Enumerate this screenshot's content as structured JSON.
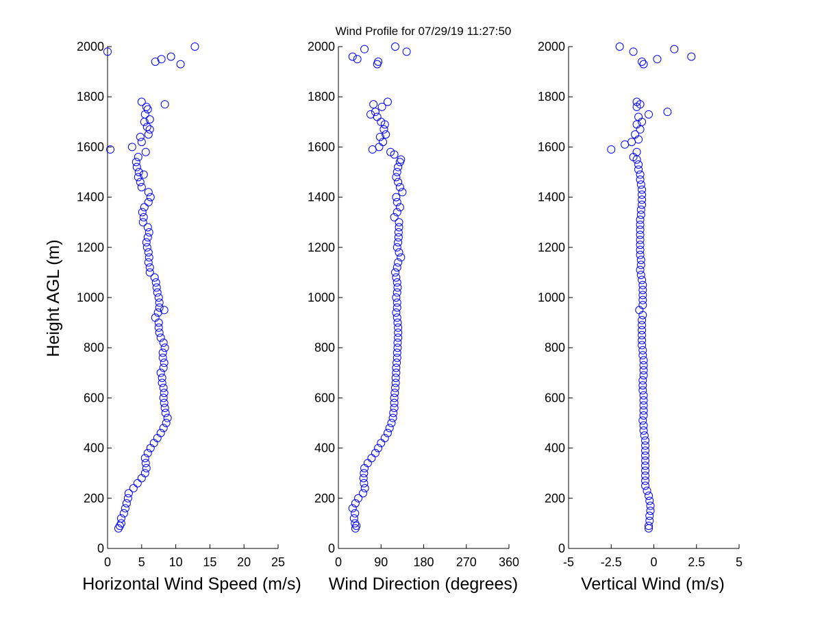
{
  "figure": {
    "title": "Wind Profile for  07/29/19 11:27:50",
    "ylabel": "Height AGL (m)"
  },
  "colors": {
    "marker": "#0000ff",
    "axis": "#000000",
    "background": "#ffffff"
  },
  "chart_data": [
    {
      "type": "scatter",
      "name": "horizontal-wind-speed",
      "xlabel": "Horizontal Wind Speed (m/s)",
      "ylabel": "Height AGL (m)",
      "xlim": [
        0,
        25
      ],
      "ylim": [
        0,
        2000
      ],
      "xticks": [
        0,
        5,
        10,
        15,
        20,
        25
      ],
      "xtick_labels": [
        "0",
        "5",
        "10",
        "15",
        "20",
        "25"
      ],
      "yticks": [
        0,
        200,
        400,
        600,
        800,
        1000,
        1200,
        1400,
        1600,
        1800,
        2000
      ],
      "ytick_labels": [
        "0",
        "200",
        "400",
        "600",
        "800",
        "1000",
        "1200",
        "1400",
        "1600",
        "1800",
        "2000"
      ],
      "marker": "open-circle",
      "points": [
        [
          1.6,
          80
        ],
        [
          1.8,
          90
        ],
        [
          2.0,
          100
        ],
        [
          2.0,
          120
        ],
        [
          2.4,
          140
        ],
        [
          2.6,
          160
        ],
        [
          2.8,
          180
        ],
        [
          3.0,
          200
        ],
        [
          3.1,
          220
        ],
        [
          3.8,
          240
        ],
        [
          4.4,
          260
        ],
        [
          5.0,
          280
        ],
        [
          5.5,
          300
        ],
        [
          5.7,
          320
        ],
        [
          5.6,
          340
        ],
        [
          5.5,
          360
        ],
        [
          5.9,
          380
        ],
        [
          6.3,
          400
        ],
        [
          6.8,
          420
        ],
        [
          7.3,
          440
        ],
        [
          7.8,
          460
        ],
        [
          8.2,
          480
        ],
        [
          8.6,
          500
        ],
        [
          8.8,
          520
        ],
        [
          8.5,
          540
        ],
        [
          8.4,
          560
        ],
        [
          8.3,
          580
        ],
        [
          8.2,
          600
        ],
        [
          8.3,
          620
        ],
        [
          8.2,
          640
        ],
        [
          8.0,
          660
        ],
        [
          8.0,
          680
        ],
        [
          7.8,
          700
        ],
        [
          8.2,
          720
        ],
        [
          8.3,
          740
        ],
        [
          8.1,
          760
        ],
        [
          8.1,
          780
        ],
        [
          8.4,
          800
        ],
        [
          8.2,
          820
        ],
        [
          7.8,
          840
        ],
        [
          7.6,
          860
        ],
        [
          7.5,
          880
        ],
        [
          7.5,
          900
        ],
        [
          7.0,
          920
        ],
        [
          7.4,
          940
        ],
        [
          8.3,
          950
        ],
        [
          7.6,
          960
        ],
        [
          7.6,
          980
        ],
        [
          7.5,
          1000
        ],
        [
          7.3,
          1020
        ],
        [
          7.2,
          1040
        ],
        [
          7.1,
          1060
        ],
        [
          6.9,
          1080
        ],
        [
          6.2,
          1100
        ],
        [
          6.2,
          1120
        ],
        [
          6.0,
          1140
        ],
        [
          6.1,
          1160
        ],
        [
          6.0,
          1180
        ],
        [
          5.8,
          1200
        ],
        [
          5.7,
          1220
        ],
        [
          5.9,
          1240
        ],
        [
          6.1,
          1260
        ],
        [
          5.9,
          1280
        ],
        [
          5.2,
          1300
        ],
        [
          5.3,
          1320
        ],
        [
          5.1,
          1340
        ],
        [
          5.4,
          1360
        ],
        [
          6.0,
          1380
        ],
        [
          6.3,
          1400
        ],
        [
          6.0,
          1420
        ],
        [
          5.0,
          1440
        ],
        [
          4.8,
          1460
        ],
        [
          4.5,
          1480
        ],
        [
          5.3,
          1490
        ],
        [
          4.6,
          1500
        ],
        [
          4.3,
          1520
        ],
        [
          4.2,
          1540
        ],
        [
          4.5,
          1560
        ],
        [
          5.6,
          1580
        ],
        [
          0.4,
          1590
        ],
        [
          3.6,
          1600
        ],
        [
          5.0,
          1620
        ],
        [
          4.8,
          1640
        ],
        [
          6.0,
          1650
        ],
        [
          6.2,
          1670
        ],
        [
          5.8,
          1680
        ],
        [
          5.4,
          1700
        ],
        [
          6.2,
          1710
        ],
        [
          5.5,
          1730
        ],
        [
          5.9,
          1750
        ],
        [
          5.7,
          1760
        ],
        [
          8.4,
          1770
        ],
        [
          5.0,
          1780
        ],
        [
          7.0,
          1940
        ],
        [
          7.9,
          1950
        ],
        [
          9.3,
          1960
        ],
        [
          10.7,
          1930
        ],
        [
          0.0,
          1980
        ],
        [
          12.8,
          2000
        ]
      ]
    },
    {
      "type": "scatter",
      "name": "wind-direction",
      "xlabel": "Wind Direction (degrees)",
      "ylabel": "",
      "xlim": [
        0,
        360
      ],
      "ylim": [
        0,
        2000
      ],
      "xticks": [
        0,
        90,
        180,
        270,
        360
      ],
      "xtick_labels": [
        "0",
        "90",
        "180",
        "270",
        "360"
      ],
      "yticks": [
        0,
        200,
        400,
        600,
        800,
        1000,
        1200,
        1400,
        1600,
        1800,
        2000
      ],
      "ytick_labels": [
        "0",
        "200",
        "400",
        "600",
        "800",
        "1000",
        "1200",
        "1400",
        "1600",
        "1800",
        "2000"
      ],
      "marker": "open-circle",
      "points": [
        [
          36,
          80
        ],
        [
          38,
          90
        ],
        [
          35,
          100
        ],
        [
          33,
          120
        ],
        [
          35,
          140
        ],
        [
          30,
          160
        ],
        [
          36,
          180
        ],
        [
          42,
          200
        ],
        [
          52,
          220
        ],
        [
          56,
          240
        ],
        [
          54,
          260
        ],
        [
          53,
          280
        ],
        [
          54,
          300
        ],
        [
          55,
          320
        ],
        [
          62,
          340
        ],
        [
          70,
          360
        ],
        [
          78,
          380
        ],
        [
          84,
          400
        ],
        [
          90,
          420
        ],
        [
          98,
          440
        ],
        [
          104,
          460
        ],
        [
          108,
          480
        ],
        [
          112,
          500
        ],
        [
          115,
          520
        ],
        [
          116,
          540
        ],
        [
          118,
          560
        ],
        [
          118,
          580
        ],
        [
          118,
          600
        ],
        [
          119,
          620
        ],
        [
          120,
          640
        ],
        [
          121,
          660
        ],
        [
          121,
          680
        ],
        [
          122,
          700
        ],
        [
          122,
          720
        ],
        [
          123,
          740
        ],
        [
          124,
          760
        ],
        [
          124,
          780
        ],
        [
          125,
          800
        ],
        [
          125,
          820
        ],
        [
          126,
          840
        ],
        [
          126,
          860
        ],
        [
          126,
          880
        ],
        [
          125,
          900
        ],
        [
          124,
          920
        ],
        [
          122,
          940
        ],
        [
          124,
          960
        ],
        [
          124,
          980
        ],
        [
          122,
          1000
        ],
        [
          124,
          1020
        ],
        [
          125,
          1040
        ],
        [
          124,
          1060
        ],
        [
          122,
          1080
        ],
        [
          120,
          1100
        ],
        [
          124,
          1120
        ],
        [
          126,
          1140
        ],
        [
          132,
          1160
        ],
        [
          128,
          1180
        ],
        [
          124,
          1200
        ],
        [
          126,
          1220
        ],
        [
          127,
          1240
        ],
        [
          127,
          1260
        ],
        [
          128,
          1280
        ],
        [
          128,
          1300
        ],
        [
          118,
          1320
        ],
        [
          124,
          1340
        ],
        [
          130,
          1360
        ],
        [
          124,
          1380
        ],
        [
          122,
          1400
        ],
        [
          135,
          1420
        ],
        [
          130,
          1440
        ],
        [
          126,
          1460
        ],
        [
          122,
          1480
        ],
        [
          124,
          1500
        ],
        [
          126,
          1520
        ],
        [
          130,
          1540
        ],
        [
          132,
          1550
        ],
        [
          118,
          1570
        ],
        [
          110,
          1580
        ],
        [
          72,
          1590
        ],
        [
          86,
          1600
        ],
        [
          94,
          1620
        ],
        [
          88,
          1640
        ],
        [
          100,
          1650
        ],
        [
          96,
          1670
        ],
        [
          98,
          1690
        ],
        [
          90,
          1700
        ],
        [
          82,
          1720
        ],
        [
          68,
          1730
        ],
        [
          78,
          1740
        ],
        [
          92,
          1760
        ],
        [
          74,
          1770
        ],
        [
          104,
          1780
        ],
        [
          30,
          1960
        ],
        [
          40,
          1950
        ],
        [
          82,
          1930
        ],
        [
          84,
          1940
        ],
        [
          55,
          1990
        ],
        [
          120,
          2000
        ],
        [
          144,
          1980
        ]
      ]
    },
    {
      "type": "scatter",
      "name": "vertical-wind",
      "xlabel": "Vertical Wind (m/s)",
      "ylabel": "",
      "xlim": [
        -5,
        5
      ],
      "ylim": [
        0,
        2000
      ],
      "xticks": [
        -5,
        -2.5,
        0,
        2.5,
        5
      ],
      "xtick_labels": [
        "-5",
        "-2.5",
        "0",
        "2.5",
        "5"
      ],
      "yticks": [
        0,
        200,
        400,
        600,
        800,
        1000,
        1200,
        1400,
        1600,
        1800,
        2000
      ],
      "ytick_labels": [
        "0",
        "200",
        "400",
        "600",
        "800",
        "1000",
        "1200",
        "1400",
        "1600",
        "1800",
        "2000"
      ],
      "marker": "open-circle",
      "points": [
        [
          -0.3,
          80
        ],
        [
          -0.3,
          90
        ],
        [
          -0.25,
          110
        ],
        [
          -0.25,
          130
        ],
        [
          -0.2,
          150
        ],
        [
          -0.2,
          170
        ],
        [
          -0.25,
          190
        ],
        [
          -0.3,
          210
        ],
        [
          -0.4,
          230
        ],
        [
          -0.5,
          250
        ],
        [
          -0.5,
          270
        ],
        [
          -0.5,
          290
        ],
        [
          -0.5,
          310
        ],
        [
          -0.5,
          330
        ],
        [
          -0.5,
          350
        ],
        [
          -0.5,
          370
        ],
        [
          -0.5,
          390
        ],
        [
          -0.5,
          410
        ],
        [
          -0.5,
          430
        ],
        [
          -0.55,
          450
        ],
        [
          -0.6,
          470
        ],
        [
          -0.6,
          490
        ],
        [
          -0.65,
          510
        ],
        [
          -0.6,
          530
        ],
        [
          -0.6,
          550
        ],
        [
          -0.6,
          570
        ],
        [
          -0.6,
          590
        ],
        [
          -0.6,
          610
        ],
        [
          -0.65,
          630
        ],
        [
          -0.65,
          650
        ],
        [
          -0.65,
          670
        ],
        [
          -0.6,
          690
        ],
        [
          -0.6,
          710
        ],
        [
          -0.6,
          730
        ],
        [
          -0.6,
          750
        ],
        [
          -0.65,
          770
        ],
        [
          -0.65,
          790
        ],
        [
          -0.7,
          810
        ],
        [
          -0.7,
          830
        ],
        [
          -0.7,
          850
        ],
        [
          -0.7,
          870
        ],
        [
          -0.7,
          890
        ],
        [
          -0.7,
          910
        ],
        [
          -0.65,
          930
        ],
        [
          -0.85,
          950
        ],
        [
          -0.65,
          970
        ],
        [
          -0.65,
          990
        ],
        [
          -0.65,
          1010
        ],
        [
          -0.65,
          1030
        ],
        [
          -0.65,
          1050
        ],
        [
          -0.7,
          1070
        ],
        [
          -0.75,
          1090
        ],
        [
          -0.8,
          1110
        ],
        [
          -0.75,
          1130
        ],
        [
          -0.75,
          1150
        ],
        [
          -0.8,
          1170
        ],
        [
          -0.8,
          1190
        ],
        [
          -0.8,
          1210
        ],
        [
          -0.8,
          1230
        ],
        [
          -0.8,
          1250
        ],
        [
          -0.8,
          1270
        ],
        [
          -0.8,
          1290
        ],
        [
          -0.8,
          1310
        ],
        [
          -0.75,
          1330
        ],
        [
          -0.75,
          1350
        ],
        [
          -0.7,
          1370
        ],
        [
          -0.7,
          1390
        ],
        [
          -0.7,
          1410
        ],
        [
          -0.7,
          1430
        ],
        [
          -0.75,
          1450
        ],
        [
          -0.8,
          1470
        ],
        [
          -0.8,
          1490
        ],
        [
          -0.9,
          1510
        ],
        [
          -0.9,
          1530
        ],
        [
          -1.0,
          1550
        ],
        [
          -1.2,
          1560
        ],
        [
          -1.0,
          1580
        ],
        [
          -2.5,
          1590
        ],
        [
          -1.7,
          1610
        ],
        [
          -1.3,
          1620
        ],
        [
          -0.9,
          1630
        ],
        [
          -1.1,
          1650
        ],
        [
          -0.8,
          1670
        ],
        [
          -1.0,
          1690
        ],
        [
          -0.7,
          1700
        ],
        [
          -0.9,
          1720
        ],
        [
          -0.3,
          1730
        ],
        [
          0.8,
          1740
        ],
        [
          -1.0,
          1760
        ],
        [
          -0.8,
          1770
        ],
        [
          -1.0,
          1780
        ],
        [
          -0.7,
          1940
        ],
        [
          -0.6,
          1930
        ],
        [
          0.2,
          1950
        ],
        [
          2.2,
          1960
        ],
        [
          -1.2,
          1980
        ],
        [
          1.2,
          1990
        ],
        [
          -2.0,
          2000
        ]
      ]
    }
  ]
}
